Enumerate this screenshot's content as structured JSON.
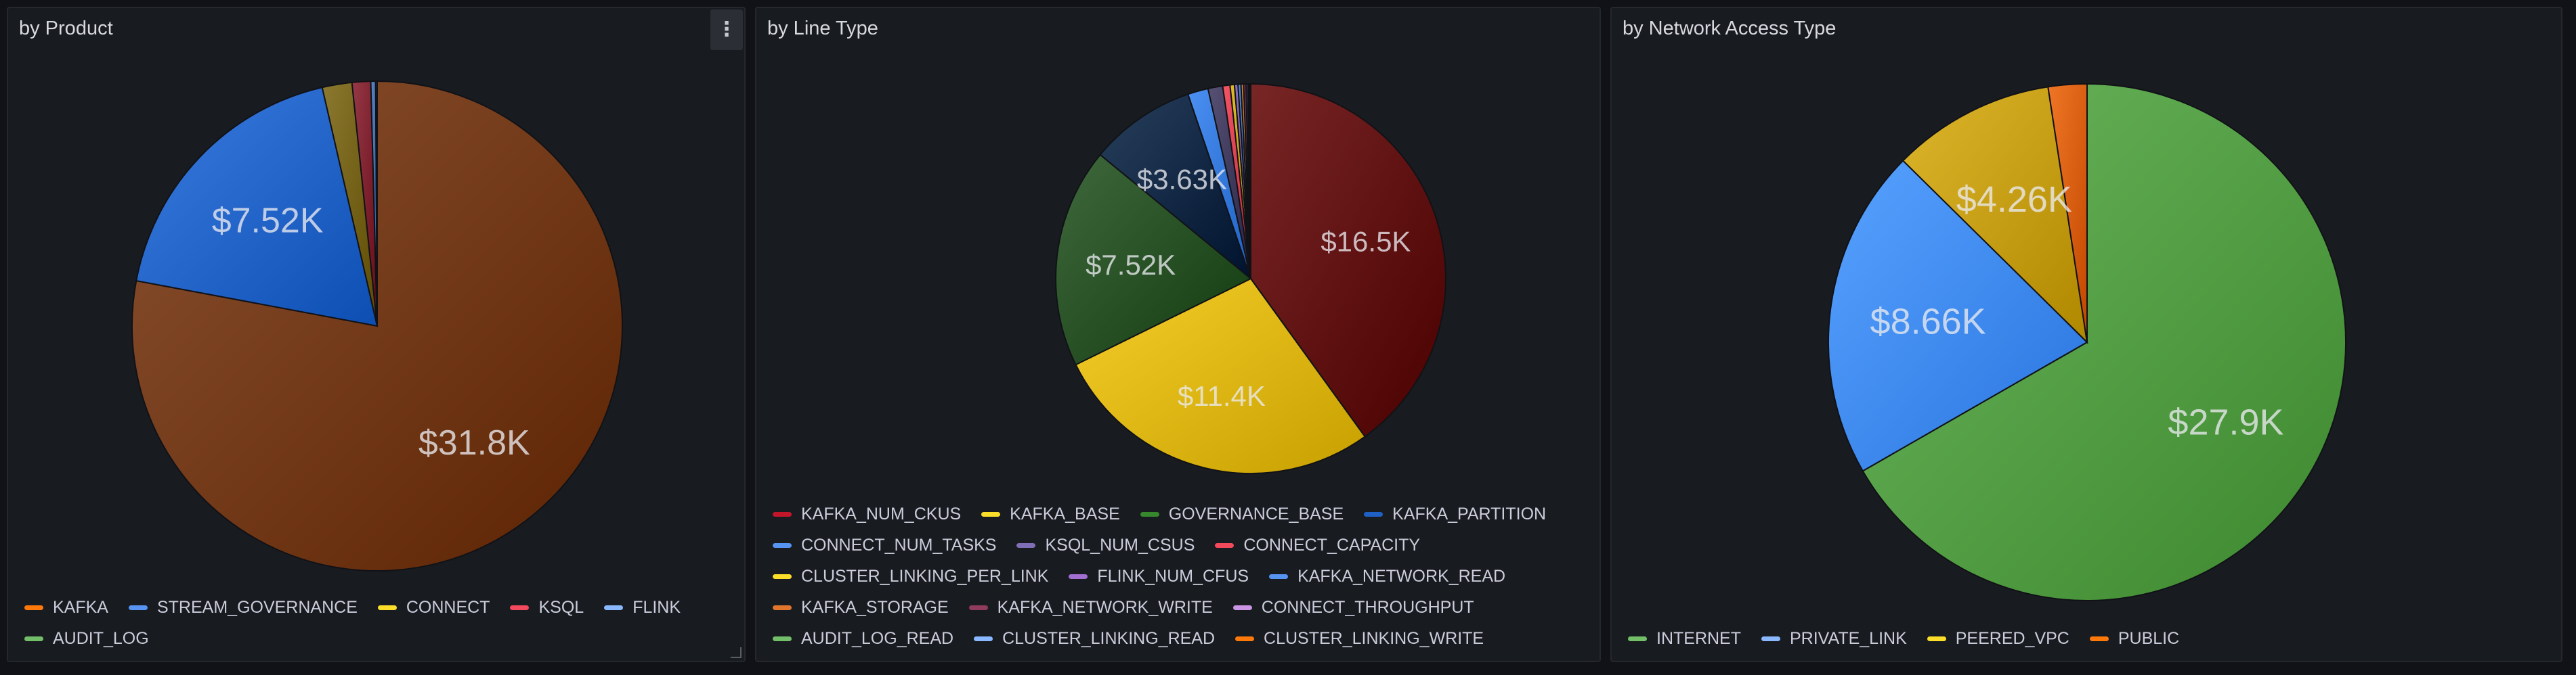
{
  "panels": [
    {
      "title": "by Product",
      "has_menu": true,
      "menu_icon": "kebab-icon",
      "chart_data": {
        "type": "pie",
        "title": "by Product",
        "legend_position": "bottom",
        "slices": [
          {
            "name": "KAFKA",
            "value": 31800,
            "label": "$31.8K",
            "color": "#6e3514",
            "legend_color": "#ff780a"
          },
          {
            "name": "STREAM_GOVERNANCE",
            "value": 7520,
            "label": "$7.52K",
            "color": "#1f60c4",
            "legend_color": "#5794f2"
          },
          {
            "name": "CONNECT",
            "value": 800,
            "label": "",
            "color": "#705d14",
            "legend_color": "#fade2a"
          },
          {
            "name": "KSQL",
            "value": 500,
            "label": "",
            "color": "#7a1d2b",
            "legend_color": "#f2495c"
          },
          {
            "name": "FLINK",
            "value": 130,
            "label": "",
            "color": "#3d6aa8",
            "legend_color": "#8ab8ff"
          },
          {
            "name": "AUDIT_LOG",
            "value": 40,
            "label": "",
            "color": "#2f5a2a",
            "legend_color": "#73bf69"
          }
        ]
      }
    },
    {
      "title": "by Line Type",
      "has_menu": false,
      "chart_data": {
        "type": "pie",
        "title": "by Line Type",
        "legend_position": "bottom",
        "slices": [
          {
            "name": "KAFKA_NUM_CKUS",
            "value": 16500,
            "label": "$16.5K",
            "color": "#5c0a0a",
            "legend_color": "#c4162a"
          },
          {
            "name": "KAFKA_BASE",
            "value": 11400,
            "label": "$11.4K",
            "color": "#d9b20e",
            "legend_color": "#fade2a"
          },
          {
            "name": "GOVERNANCE_BASE",
            "value": 7520,
            "label": "$7.52K",
            "color": "#234d21",
            "legend_color": "#37872d"
          },
          {
            "name": "KAFKA_PARTITION",
            "value": 3630,
            "label": "$3.63K",
            "color": "#0c2440",
            "legend_color": "#1f60c4"
          },
          {
            "name": "CONNECT_NUM_TASKS",
            "value": 700,
            "label": "",
            "color": "#2f74d6",
            "legend_color": "#5794f2"
          },
          {
            "name": "KSQL_NUM_CSUS",
            "value": 500,
            "label": "",
            "color": "#3b3558",
            "legend_color": "#806eb7"
          },
          {
            "name": "CONNECT_CAPACITY",
            "value": 250,
            "label": "",
            "color": "#d63a4a",
            "legend_color": "#f2495c"
          },
          {
            "name": "CLUSTER_LINKING_PER_LINK",
            "value": 150,
            "label": "",
            "color": "#c4a00e",
            "legend_color": "#fade2a"
          },
          {
            "name": "FLINK_NUM_CFUS",
            "value": 120,
            "label": "",
            "color": "#7257a0",
            "legend_color": "#a16fd1"
          },
          {
            "name": "KAFKA_NETWORK_READ",
            "value": 100,
            "label": "",
            "color": "#3a70b8",
            "legend_color": "#5794f2"
          },
          {
            "name": "KAFKA_STORAGE",
            "value": 90,
            "label": "",
            "color": "#b86a1a",
            "legend_color": "#e0752d"
          },
          {
            "name": "KAFKA_NETWORK_WRITE",
            "value": 80,
            "label": "",
            "color": "#6e2646",
            "legend_color": "#8f3b5c"
          },
          {
            "name": "CONNECT_THROUGHPUT",
            "value": 60,
            "label": "",
            "color": "#a05ab0",
            "legend_color": "#ca95e5"
          },
          {
            "name": "AUDIT_LOG_READ",
            "value": 40,
            "label": "",
            "color": "#4f8f43",
            "legend_color": "#73bf69"
          },
          {
            "name": "CLUSTER_LINKING_READ",
            "value": 30,
            "label": "",
            "color": "#6e9ee0",
            "legend_color": "#8ab8ff"
          },
          {
            "name": "CLUSTER_LINKING_WRITE",
            "value": 30,
            "label": "",
            "color": "#e0660a",
            "legend_color": "#ff780a"
          }
        ]
      }
    },
    {
      "title": "by Network Access Type",
      "has_menu": false,
      "chart_data": {
        "type": "pie",
        "title": "by Network Access Type",
        "legend_position": "bottom",
        "slices": [
          {
            "name": "INTERNET",
            "value": 27900,
            "label": "$27.9K",
            "color": "#4f9a40",
            "legend_color": "#73bf69"
          },
          {
            "name": "PRIVATE_LINK",
            "value": 8660,
            "label": "$8.66K",
            "color": "#3b86f0",
            "legend_color": "#8ab8ff"
          },
          {
            "name": "PEERED_VPC",
            "value": 4260,
            "label": "$4.26K",
            "color": "#c29a10",
            "legend_color": "#fade2a"
          },
          {
            "name": "PUBLIC",
            "value": 1010,
            "label": "",
            "color": "#d45a0a",
            "legend_color": "#ff780a"
          }
        ]
      }
    }
  ]
}
